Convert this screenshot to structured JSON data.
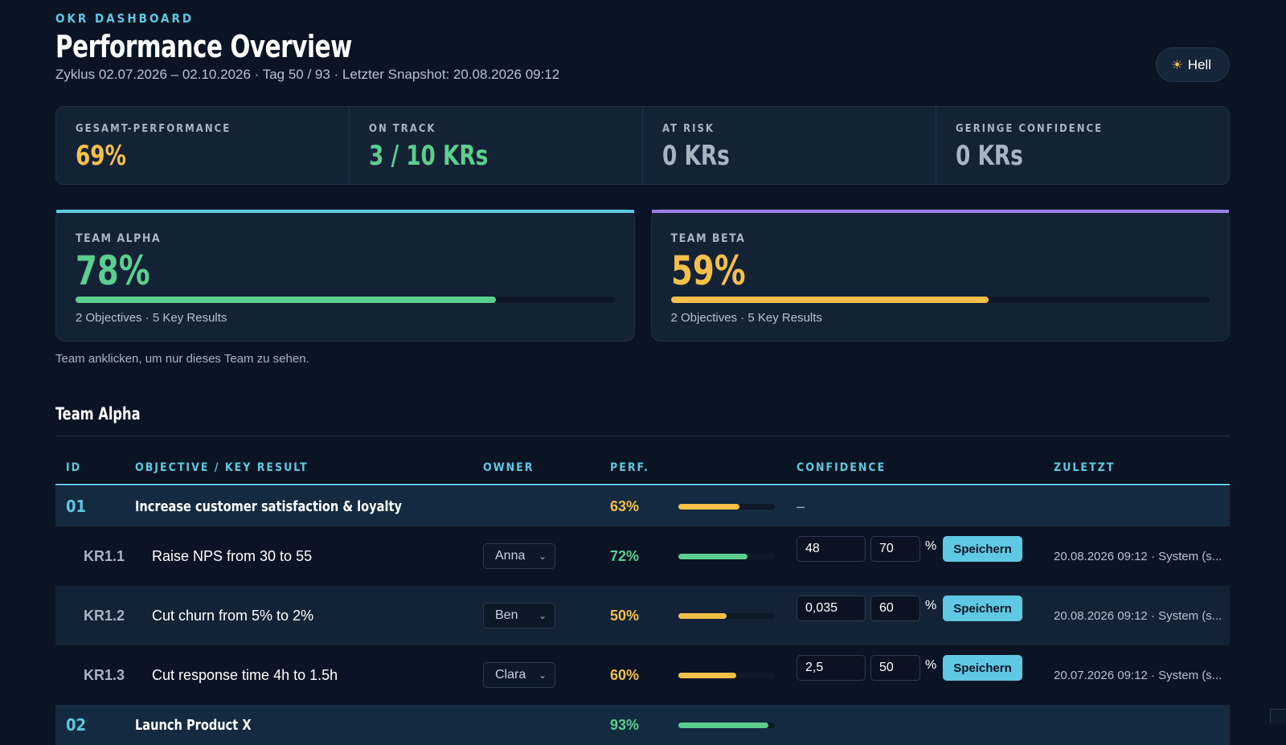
{
  "header": {
    "eyebrow": "OKR DASHBOARD",
    "title": "Performance Overview",
    "subtitle": "Zyklus 02.07.2026 – 02.10.2026 · Tag 50 / 93 · Letzter Snapshot: 20.08.2026 09:12",
    "theme_button": "Hell",
    "theme_icon": "sun-icon"
  },
  "kpis": [
    {
      "label": "GESAMT-PERFORMANCE",
      "value": "69%",
      "color": "#f5c04a"
    },
    {
      "label": "ON TRACK",
      "value": "3 / 10 KRs",
      "color": "#5ccf8f"
    },
    {
      "label": "AT RISK",
      "value": "0 KRs",
      "color": "#a9b4c3"
    },
    {
      "label": "GERINGE CONFIDENCE",
      "value": "0 KRs",
      "color": "#a9b4c3"
    }
  ],
  "teams": [
    {
      "label": "TEAM ALPHA",
      "pct": "78%",
      "progress": 0.78,
      "meta": "2 Objectives · 5 Key Results",
      "color": "#5ccf8f",
      "accent": "#5fc8e2"
    },
    {
      "label": "TEAM BETA",
      "pct": "59%",
      "progress": 0.59,
      "meta": "2 Objectives · 5 Key Results",
      "color": "#f5c04a",
      "accent": "#9b7fe6"
    }
  ],
  "hint": "Team anklicken, um nur dieses Team zu sehen.",
  "section": {
    "title": "Team Alpha",
    "columns": {
      "id": "ID",
      "objective": "OBJECTIVE / KEY RESULT",
      "owner": "OWNER",
      "perf": "PERF.",
      "confidence": "CONFIDENCE",
      "last": "ZULETZT"
    },
    "objective": {
      "id": "01",
      "name": "Increase customer satisfaction & loyalty",
      "perf": "63%",
      "progress": 0.63,
      "confidence": "–",
      "color": "#f5c04a"
    },
    "key_results": [
      {
        "id": "KR1.1",
        "name": "Raise NPS from 30 to 55",
        "owner": "Anna",
        "perf": "72%",
        "progress": 0.72,
        "color": "#5ccf8f",
        "value": "48",
        "confidence": "70",
        "pct_sign": "%",
        "save": "Speichern",
        "last": "20.08.2026 09:12 · System (s..."
      },
      {
        "id": "KR1.2",
        "name": "Cut churn from 5% to 2%",
        "owner": "Ben",
        "perf": "50%",
        "progress": 0.5,
        "color": "#f5c04a",
        "value": "0,035",
        "confidence": "60",
        "pct_sign": "%",
        "save": "Speichern",
        "last": "20.08.2026 09:12 · System (s..."
      },
      {
        "id": "KR1.3",
        "name": "Cut response time 4h to 1.5h",
        "owner": "Clara",
        "perf": "60%",
        "progress": 0.6,
        "color": "#f5c04a",
        "value": "2,5",
        "confidence": "50",
        "pct_sign": "%",
        "save": "Speichern",
        "last": "20.07.2026 09:12 · System (s..."
      }
    ],
    "next_objective": {
      "id": "02",
      "name": "Launch Product X",
      "perf": "93%",
      "progress": 0.93,
      "color": "#5ccf8f"
    }
  }
}
